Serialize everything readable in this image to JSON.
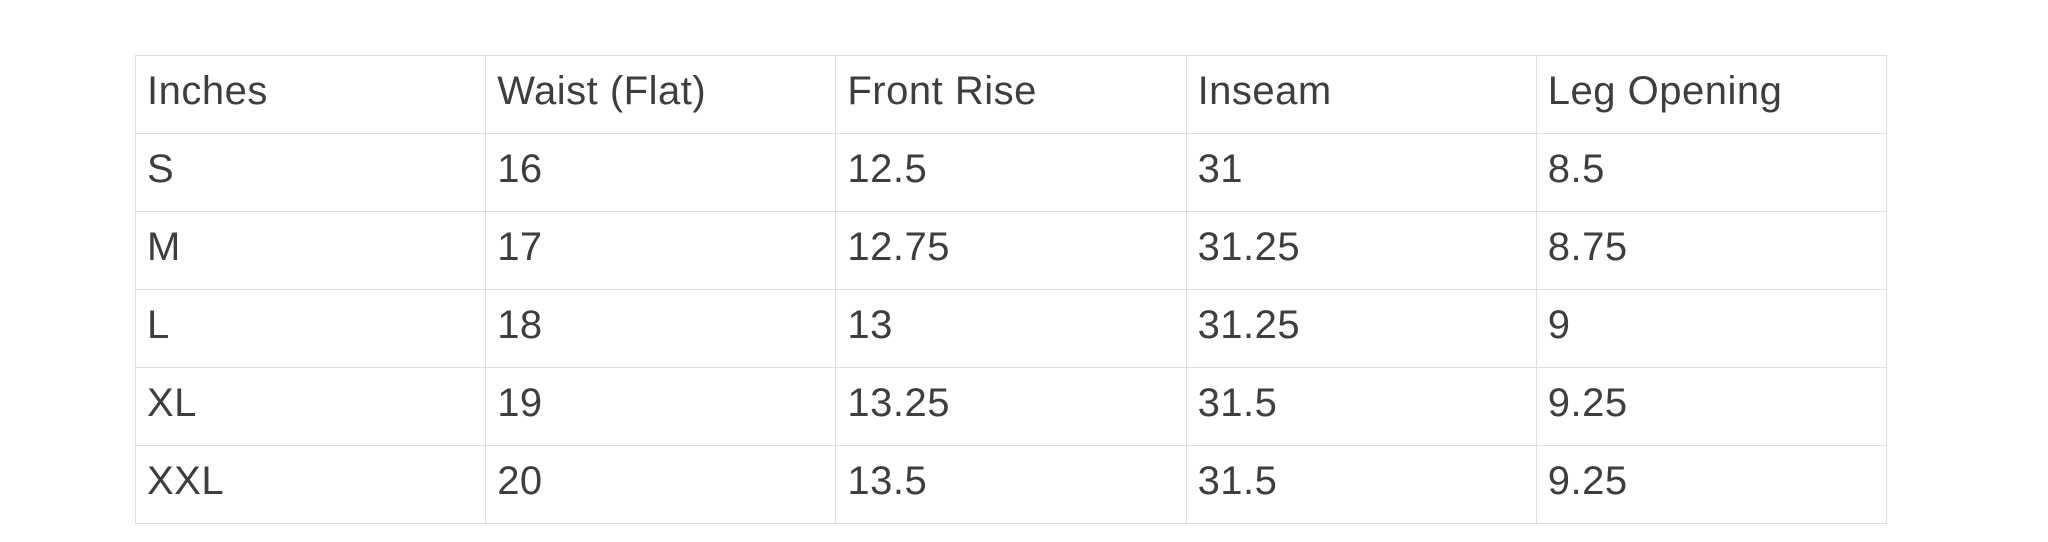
{
  "size_chart": {
    "columns": [
      "Inches",
      "Waist (Flat)",
      "Front Rise",
      "Inseam",
      "Leg Opening"
    ],
    "rows": [
      [
        "S",
        "16",
        "12.5",
        "31",
        "8.5"
      ],
      [
        "M",
        "17",
        "12.75",
        "31.25",
        "8.75"
      ],
      [
        "L",
        "18",
        "13",
        "31.25",
        "9"
      ],
      [
        "XL",
        "19",
        "13.25",
        "31.5",
        "9.25"
      ],
      [
        "XXL",
        "20",
        "13.5",
        "31.5",
        "9.25"
      ]
    ],
    "colors": {
      "text": "#3e3e3e",
      "border": "#dedede",
      "background": "#ffffff"
    }
  }
}
